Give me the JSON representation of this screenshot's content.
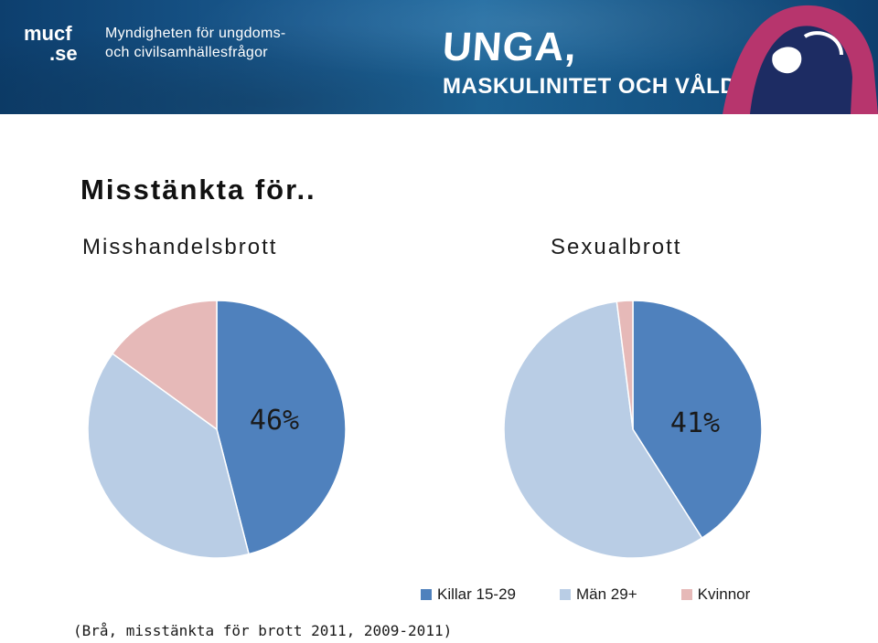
{
  "banner": {
    "logo_line1": "mucf",
    "logo_line2": ".se",
    "agency_line1": "Myndigheten för ungdoms-",
    "agency_line2": "och civilsamhällesfrågor",
    "title": "UNGA,",
    "subtitle": "MASKULINITET OCH VÅLD!"
  },
  "slide": {
    "title": "Misstänkta för..",
    "source": "(Brå, misstänkta för brott 2011, 2009-2011)"
  },
  "colors": {
    "killar": "#4f81bd",
    "man": "#b9cde5",
    "kvinnor": "#e6b9b8"
  },
  "chart_data": [
    {
      "type": "pie",
      "title": "Misshandelsbrott",
      "categories": [
        "Killar 15-29",
        "Män 29+",
        "Kvinnor"
      ],
      "values": [
        46,
        39,
        15
      ],
      "data_labels": [
        "46%",
        "",
        ""
      ],
      "legend": "bottom"
    },
    {
      "type": "pie",
      "title": "Sexualbrott",
      "categories": [
        "Killar 15-29",
        "Män 29+",
        "Kvinnor"
      ],
      "values": [
        41,
        57,
        2
      ],
      "data_labels": [
        "41%",
        "",
        ""
      ],
      "legend": "bottom"
    }
  ],
  "legend": {
    "items": [
      "Killar 15-29",
      "Män 29+",
      "Kvinnor"
    ]
  }
}
